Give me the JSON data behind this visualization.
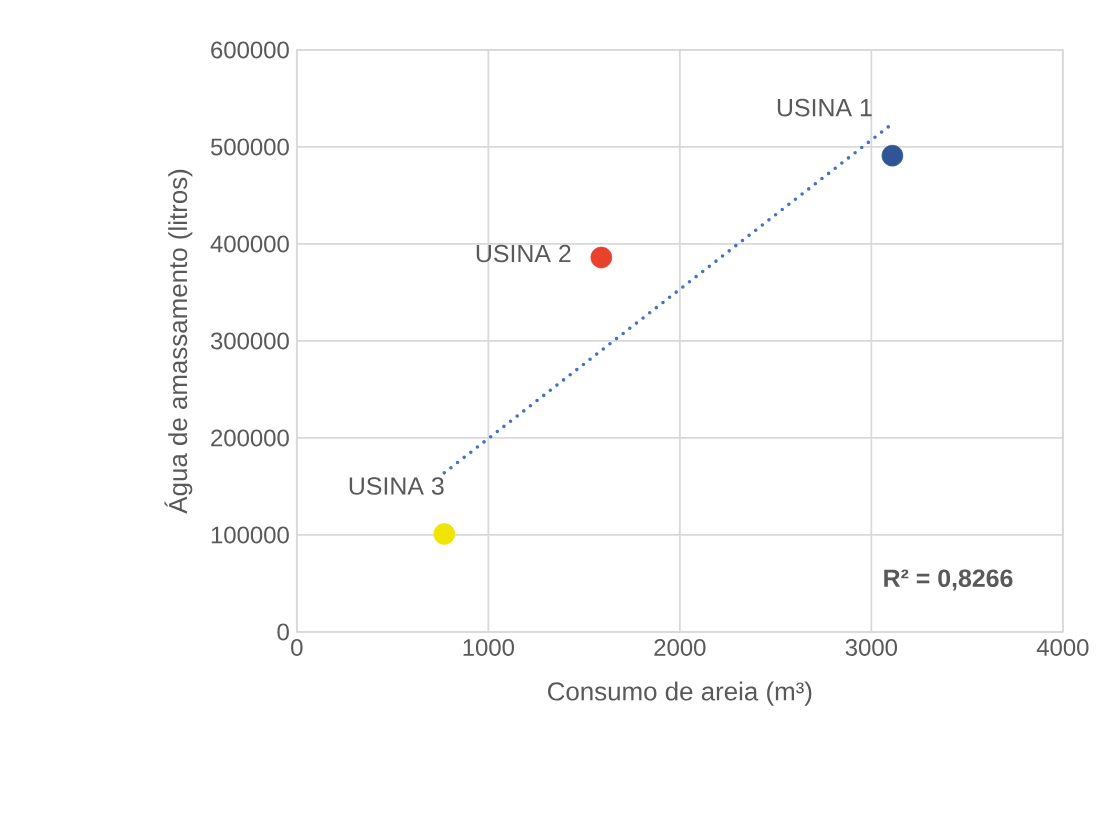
{
  "chart_data": {
    "type": "scatter",
    "xlabel": "Consumo de areia (m³)",
    "ylabel": "Água de amassamento (litros)",
    "series": [
      {
        "name": "USINA 1",
        "color": "#2f5597",
        "x": [
          3110
        ],
        "values": [
          491000
        ]
      },
      {
        "name": "USINA 2",
        "color": "#e8412c",
        "x": [
          1590
        ],
        "values": [
          386000
        ]
      },
      {
        "name": "USINA 3",
        "color": "#f0e400",
        "x": [
          770
        ],
        "values": [
          101000
        ]
      },
      {
        "type": "line",
        "color": "#4472c4",
        "line_style": "dotted",
        "marker": "none",
        "x": [
          770,
          3110
        ],
        "values": [
          164000,
          524000
        ]
      }
    ],
    "annotations": [
      "R² = 0,8266"
    ],
    "xlim": [
      0,
      4000
    ],
    "xticks": [
      0,
      1000,
      2000,
      3000,
      4000
    ],
    "ylim": [
      0,
      600000
    ],
    "yticks": [
      0,
      100000,
      200000,
      300000,
      400000,
      500000,
      600000
    ],
    "grid": true,
    "legend": false,
    "marker": "circle"
  }
}
